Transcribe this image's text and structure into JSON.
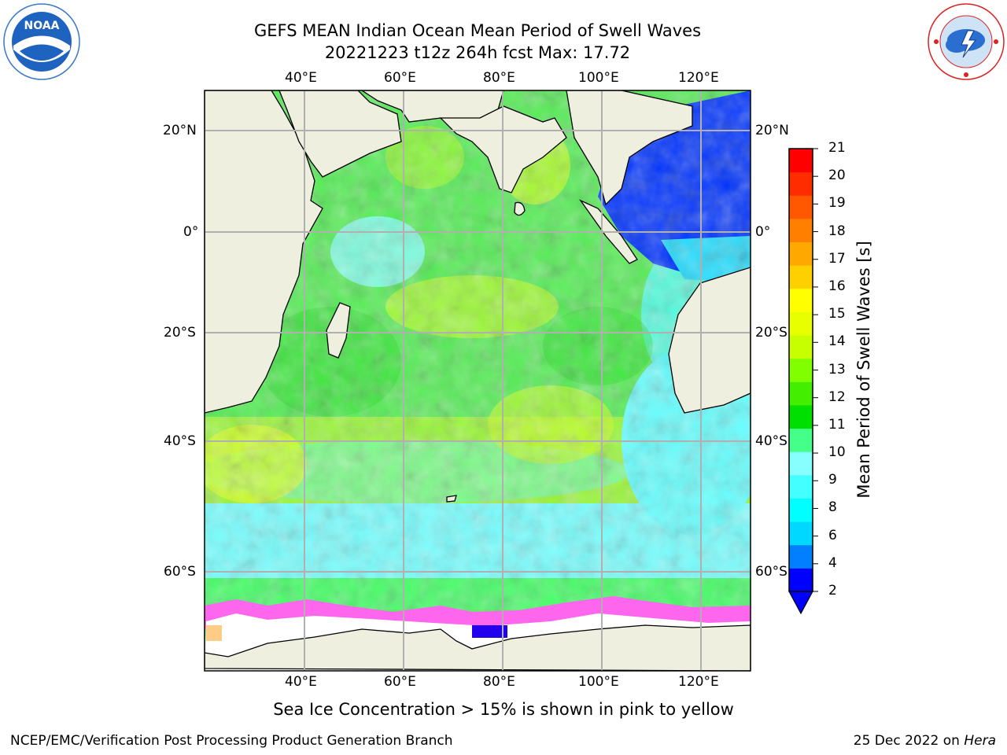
{
  "title_line1": "GEFS MEAN Indian Ocean Mean Period of Swell Waves",
  "title_line2": "20221223 t12z 264h fcst   Max: 17.72",
  "logos": {
    "left": "NOAA",
    "right_icon": "nws-logo"
  },
  "map": {
    "lon_range": [
      20,
      130
    ],
    "lat_range": [
      -73,
      28
    ],
    "lon_ticks": [
      "40°E",
      "60°E",
      "80°E",
      "100°E",
      "120°E"
    ],
    "lat_ticks": [
      "20°N",
      "0°",
      "20°S",
      "40°S",
      "60°S"
    ],
    "land_color": "#efefdf",
    "gridlines": true
  },
  "colorbar": {
    "label": "Mean Period of Swell Waves [s]",
    "ticks": [
      "21",
      "20",
      "19",
      "18",
      "17",
      "16",
      "15",
      "14",
      "13",
      "12",
      "11",
      "10",
      "9",
      "8",
      "6",
      "4",
      "2"
    ],
    "colors": [
      "#0000ff",
      "#0080ff",
      "#00d8ff",
      "#00ffff",
      "#44ffff",
      "#88ffff",
      "#44ff88",
      "#00e000",
      "#44ee00",
      "#80ff00",
      "#c8ff00",
      "#e8ff00",
      "#ffff00",
      "#ffd000",
      "#ffa800",
      "#ff8000",
      "#ff5800",
      "#ff2c00",
      "#ff0000"
    ]
  },
  "caption": "Sea Ice Concentration > 15% is shown in pink to yellow",
  "footer_left": "NCEP/EMC/Verification Post Processing Product Generation Branch",
  "footer_date": "25 Dec 2022 on",
  "footer_machine": "Hera"
}
